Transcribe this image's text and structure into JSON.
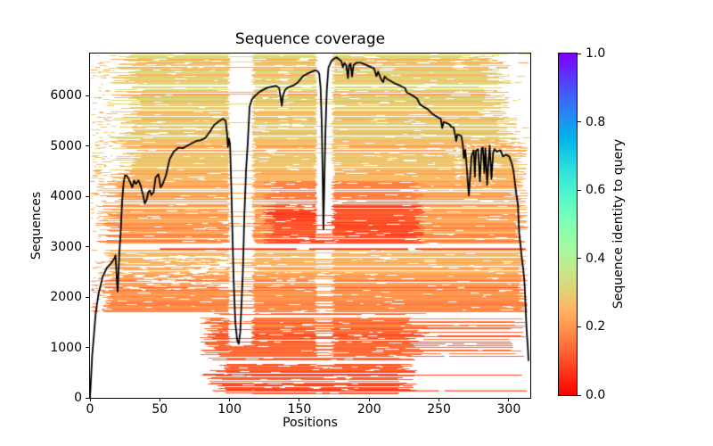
{
  "chart_data": {
    "type": "msa-coverage-heatmap",
    "title": "Sequence coverage",
    "xlabel": "Positions",
    "ylabel": "Sequences",
    "xlim": [
      0,
      315.4
    ],
    "ylim": [
      0,
      6840
    ],
    "xticks": [
      0,
      50,
      100,
      150,
      200,
      250,
      300
    ],
    "yticks": [
      0,
      1000,
      2000,
      3000,
      4000,
      5000,
      6000
    ],
    "colorbar": {
      "label": "Sequence identity to query",
      "ticks": [
        "0.0",
        "0.2",
        "0.4",
        "0.6",
        "0.8",
        "1.0"
      ],
      "tick_values": [
        0.0,
        0.2,
        0.4,
        0.6,
        0.8,
        1.0
      ],
      "cmap": "rainbow_r",
      "vmin": 0.0,
      "vmax": 1.0
    },
    "coverage_line": {
      "color": "#000000",
      "width": 1.8,
      "points": [
        [
          0,
          0
        ],
        [
          0.8,
          420
        ],
        [
          1.6,
          860
        ],
        [
          2.6,
          1180
        ],
        [
          4,
          1660
        ],
        [
          6,
          2050
        ],
        [
          9,
          2400
        ],
        [
          12,
          2580
        ],
        [
          15,
          2670
        ],
        [
          17.5,
          2770
        ],
        [
          18.3,
          2830
        ],
        [
          19.2,
          2350
        ],
        [
          19.8,
          2110
        ],
        [
          20.5,
          2550
        ],
        [
          21,
          2870
        ],
        [
          22,
          3300
        ],
        [
          23,
          3900
        ],
        [
          24,
          4260
        ],
        [
          25,
          4420
        ],
        [
          26.5,
          4410
        ],
        [
          28,
          4330
        ],
        [
          30.3,
          4180
        ],
        [
          31.5,
          4320
        ],
        [
          32.8,
          4250
        ],
        [
          34.7,
          4320
        ],
        [
          36.3,
          4210
        ],
        [
          38,
          4030
        ],
        [
          39.2,
          3860
        ],
        [
          40.5,
          3930
        ],
        [
          41.8,
          4090
        ],
        [
          42.8,
          4120
        ],
        [
          44,
          4030
        ],
        [
          45.6,
          4090
        ],
        [
          47,
          4380
        ],
        [
          49,
          4440
        ],
        [
          50.6,
          4180
        ],
        [
          52,
          4240
        ],
        [
          54.5,
          4430
        ],
        [
          57,
          4740
        ],
        [
          60,
          4890
        ],
        [
          63.4,
          4970
        ],
        [
          66.6,
          4960
        ],
        [
          69.8,
          5010
        ],
        [
          73,
          5060
        ],
        [
          76,
          5100
        ],
        [
          79.3,
          5120
        ],
        [
          82.5,
          5160
        ],
        [
          85.7,
          5280
        ],
        [
          88.9,
          5420
        ],
        [
          92.1,
          5490
        ],
        [
          95.3,
          5545
        ],
        [
          97.2,
          5500
        ],
        [
          98.2,
          5240
        ],
        [
          98.8,
          4980
        ],
        [
          99.5,
          5150
        ],
        [
          100.3,
          5050
        ],
        [
          101.2,
          4200
        ],
        [
          102,
          3300
        ],
        [
          102.9,
          2330
        ],
        [
          104.1,
          1500
        ],
        [
          105.4,
          1150
        ],
        [
          106.5,
          1070
        ],
        [
          107.6,
          1300
        ],
        [
          108.6,
          1900
        ],
        [
          109.6,
          2580
        ],
        [
          110.6,
          3650
        ],
        [
          111.8,
          4530
        ],
        [
          113,
          5060
        ],
        [
          114.3,
          5780
        ],
        [
          116,
          5930
        ],
        [
          118,
          5990
        ],
        [
          121,
          6070
        ],
        [
          124,
          6120
        ],
        [
          127,
          6160
        ],
        [
          130,
          6180
        ],
        [
          133.4,
          6200
        ],
        [
          135.5,
          6150
        ],
        [
          136.8,
          5920
        ],
        [
          137.4,
          5800
        ],
        [
          138.2,
          6000
        ],
        [
          139.8,
          6120
        ],
        [
          142,
          6170
        ],
        [
          146,
          6210
        ],
        [
          149,
          6270
        ],
        [
          152.6,
          6390
        ],
        [
          155.7,
          6440
        ],
        [
          158.9,
          6480
        ],
        [
          161.3,
          6505
        ],
        [
          163,
          6490
        ],
        [
          164.2,
          6440
        ],
        [
          165.2,
          6150
        ],
        [
          166,
          5450
        ],
        [
          166.7,
          4350
        ],
        [
          167.2,
          3350
        ],
        [
          167.8,
          4150
        ],
        [
          168.6,
          5240
        ],
        [
          169.6,
          6100
        ],
        [
          170.8,
          6560
        ],
        [
          172.9,
          6690
        ],
        [
          174.9,
          6740
        ],
        [
          176.6,
          6765
        ],
        [
          178.1,
          6730
        ],
        [
          180,
          6690
        ],
        [
          181.2,
          6570
        ],
        [
          182.3,
          6655
        ],
        [
          183.6,
          6600
        ],
        [
          184.8,
          6350
        ],
        [
          185.6,
          6600
        ],
        [
          186.6,
          6640
        ],
        [
          187.7,
          6380
        ],
        [
          188.8,
          6610
        ],
        [
          190.8,
          6655
        ],
        [
          194,
          6655
        ],
        [
          197.2,
          6620
        ],
        [
          200.3,
          6580
        ],
        [
          203.5,
          6545
        ],
        [
          205.2,
          6390
        ],
        [
          206.4,
          6480
        ],
        [
          208.5,
          6330
        ],
        [
          210,
          6270
        ],
        [
          211,
          6385
        ],
        [
          213,
          6330
        ],
        [
          215,
          6300
        ],
        [
          218,
          6250
        ],
        [
          221.6,
          6210
        ],
        [
          225.8,
          6150
        ],
        [
          226.9,
          6065
        ],
        [
          229,
          6040
        ],
        [
          231,
          6005
        ],
        [
          234.3,
          5945
        ],
        [
          236.4,
          5830
        ],
        [
          239.6,
          5770
        ],
        [
          241.7,
          5740
        ],
        [
          244.9,
          5650
        ],
        [
          248.1,
          5590
        ],
        [
          251.3,
          5540
        ],
        [
          252.3,
          5360
        ],
        [
          253.3,
          5480
        ],
        [
          255.5,
          5460
        ],
        [
          257.5,
          5430
        ],
        [
          259,
          5380
        ],
        [
          260.5,
          5370
        ],
        [
          261.5,
          5230
        ],
        [
          262.3,
          5100
        ],
        [
          263.2,
          5230
        ],
        [
          264.5,
          5220
        ],
        [
          266,
          5200
        ],
        [
          267,
          5040
        ],
        [
          267.9,
          4760
        ],
        [
          268.8,
          4930
        ],
        [
          269.6,
          4690
        ],
        [
          270.5,
          4340
        ],
        [
          271.4,
          4020
        ],
        [
          272.3,
          4400
        ],
        [
          273.3,
          4800
        ],
        [
          274.9,
          4920
        ],
        [
          275.7,
          4390
        ],
        [
          276.5,
          4910
        ],
        [
          278,
          4940
        ],
        [
          279.3,
          4300
        ],
        [
          280.5,
          4960
        ],
        [
          281.5,
          4970
        ],
        [
          282.5,
          4470
        ],
        [
          283.3,
          4955
        ],
        [
          284.5,
          4230
        ],
        [
          285.5,
          4700
        ],
        [
          286.3,
          5010
        ],
        [
          287.6,
          4350
        ],
        [
          288.8,
          4870
        ],
        [
          289.8,
          4940
        ],
        [
          291.5,
          4890
        ],
        [
          294,
          4920
        ],
        [
          295.8,
          4795
        ],
        [
          297.7,
          4830
        ],
        [
          300.2,
          4800
        ],
        [
          302.1,
          4660
        ],
        [
          303.4,
          4500
        ],
        [
          304.2,
          4320
        ],
        [
          305.4,
          4050
        ],
        [
          306.6,
          3820
        ],
        [
          307.4,
          3290
        ],
        [
          308.4,
          3030
        ],
        [
          309.4,
          2760
        ],
        [
          310.4,
          2550
        ],
        [
          311.2,
          2300
        ],
        [
          311.9,
          1910
        ],
        [
          312.6,
          1430
        ],
        [
          313.2,
          1170
        ],
        [
          313.7,
          980
        ],
        [
          314.1,
          745
        ]
      ]
    },
    "msa_texture": {
      "seed": 1234,
      "white_row_band": [
        2940,
        3060
      ],
      "bands": [
        {
          "s": [
            0,
            140
          ],
          "row_prob": 0.3,
          "left_dash_prob": 0,
          "x_start": [
            105,
            12
          ],
          "x_end_options": [
            [
              1,
              224,
              10
            ]
          ],
          "identity": [
            0.1,
            0.1,
            0.03
          ],
          "outlier": null,
          "hot": null,
          "holes": [
            0,
            2,
            2,
            8
          ],
          "right_dash_prob": 0
        },
        {
          "s": [
            140,
            800
          ],
          "row_prob": 0.8,
          "left_dash_prob": 0,
          "x_start": [
            90,
            10
          ],
          "x_end_options": [
            [
              0.05,
              300,
              10
            ],
            [
              1,
              228,
              8
            ]
          ],
          "identity": [
            0.1,
            0.13,
            0.04
          ],
          "outlier": null,
          "hot": null,
          "holes": [
            1,
            3,
            2,
            10
          ],
          "right_dash_prob": 0
        },
        {
          "s": [
            800,
            1700
          ],
          "row_prob": 0.92,
          "left_dash_prob": 0,
          "x_start": [
            86,
            8
          ],
          "x_end_options": [
            [
              0.35,
              306,
              6
            ],
            [
              1,
              233,
              10
            ]
          ],
          "identity": [
            0.12,
            0.15,
            0.04
          ],
          "outlier": null,
          "hot": null,
          "holes": [
            1,
            3,
            2,
            10
          ],
          "right_dash_prob": 0
        },
        {
          "s": [
            1700,
            2940
          ],
          "row_prob": 0.93,
          "left_dash_prob": 0.65,
          "x_start": [
            12,
            5
          ],
          "x_end_options": [
            [
              1,
              310,
              4
            ]
          ],
          "identity": [
            0.175,
            0.265,
            0.025
          ],
          "outlier": [
            0.05,
            0.12,
            0.03
          ],
          "hot": null,
          "holes": [
            1,
            4,
            2,
            10
          ],
          "left_holes": [
            2150,
            2820,
            4,
            15,
            110
          ],
          "right_dash_prob": 0
        },
        {
          "s": [
            3060,
            4300
          ],
          "row_prob": 0.92,
          "left_dash_prob": 0.5,
          "x_start": [
            14,
            10
          ],
          "x_end_options": [
            [
              1,
              309,
              5
            ]
          ],
          "identity": [
            0.2,
            0.24,
            0.05
          ],
          "outlier": [
            0.05,
            0.3,
            0.03
          ],
          "hot": [
            128,
            236,
            3900,
            0.11,
            0.04
          ],
          "hot2": [
            3900,
            4300,
            0.17
          ],
          "holes": [
            1,
            4,
            2,
            10
          ],
          "right_dash_prob": 0
        },
        {
          "s": [
            4300,
            6840
          ],
          "row_prob": 0.9,
          "left_dash_prob": 0.6,
          "x_start": [
            25,
            12
          ],
          "x_end_by_s": [
            [
              5000,
              308,
              6
            ],
            [
              5600,
              298,
              10
            ],
            [
              99999,
              290,
              12
            ]
          ],
          "x_end_options": [
            [
              1,
              308,
              6
            ]
          ],
          "identity": [
            0.27,
            0.32,
            0.04
          ],
          "outlier": [
            0.15,
            0.22,
            0.02
          ],
          "hot": null,
          "holes": [
            1,
            4,
            2,
            10
          ],
          "right_dash_prob": 0.35
        }
      ],
      "vertical_gaps": [
        {
          "x": [
            99.5,
            117
          ],
          "rules": [
            [
              0,
              1050,
              0.05
            ],
            [
              1050,
              3060,
              0.72
            ],
            [
              3060,
              6840,
              0.93
            ]
          ]
        },
        {
          "x": [
            162,
            174
          ],
          "rules": [
            [
              0,
              900,
              0.08
            ],
            [
              900,
              3350,
              0.45
            ],
            [
              3350,
              6840,
              0.92
            ]
          ]
        },
        {
          "x": [
            135,
            142
          ],
          "rules": [
            [
              5200,
              6500,
              0.22
            ]
          ]
        },
        {
          "x": [
            262,
            265
          ],
          "rules": [
            [
              4200,
              5050,
              0.45
            ]
          ]
        },
        {
          "x": [
            269.5,
            272.5
          ],
          "rules": [
            [
              4200,
              5050,
              0.45
            ]
          ]
        },
        {
          "x": [
            274.8,
            276.8
          ],
          "rules": [
            [
              4200,
              5050,
              0.45
            ]
          ]
        },
        {
          "x": [
            278.3,
            280.5
          ],
          "rules": [
            [
              4200,
              5050,
              0.45
            ]
          ]
        },
        {
          "x": [
            283.5,
            286
          ],
          "rules": [
            [
              4200,
              5050,
              0.45
            ]
          ]
        },
        {
          "x": [
            287,
            288.8
          ],
          "rules": [
            [
              4200,
              5050,
              0.45
            ]
          ]
        }
      ],
      "special_rows": [
        {
          "seq": 2970,
          "x": [
            50,
            312
          ],
          "identity": 0.05,
          "height": 1.6,
          "holes": [
            [
              148,
              157
            ],
            [
              228,
              233
            ]
          ]
        },
        {
          "seq": 150,
          "x": [
            88,
            313
          ],
          "identity": 0.1,
          "height": 1.3,
          "holes": [
            [
              140,
              144
            ],
            [
              250,
              254
            ]
          ]
        }
      ]
    }
  }
}
